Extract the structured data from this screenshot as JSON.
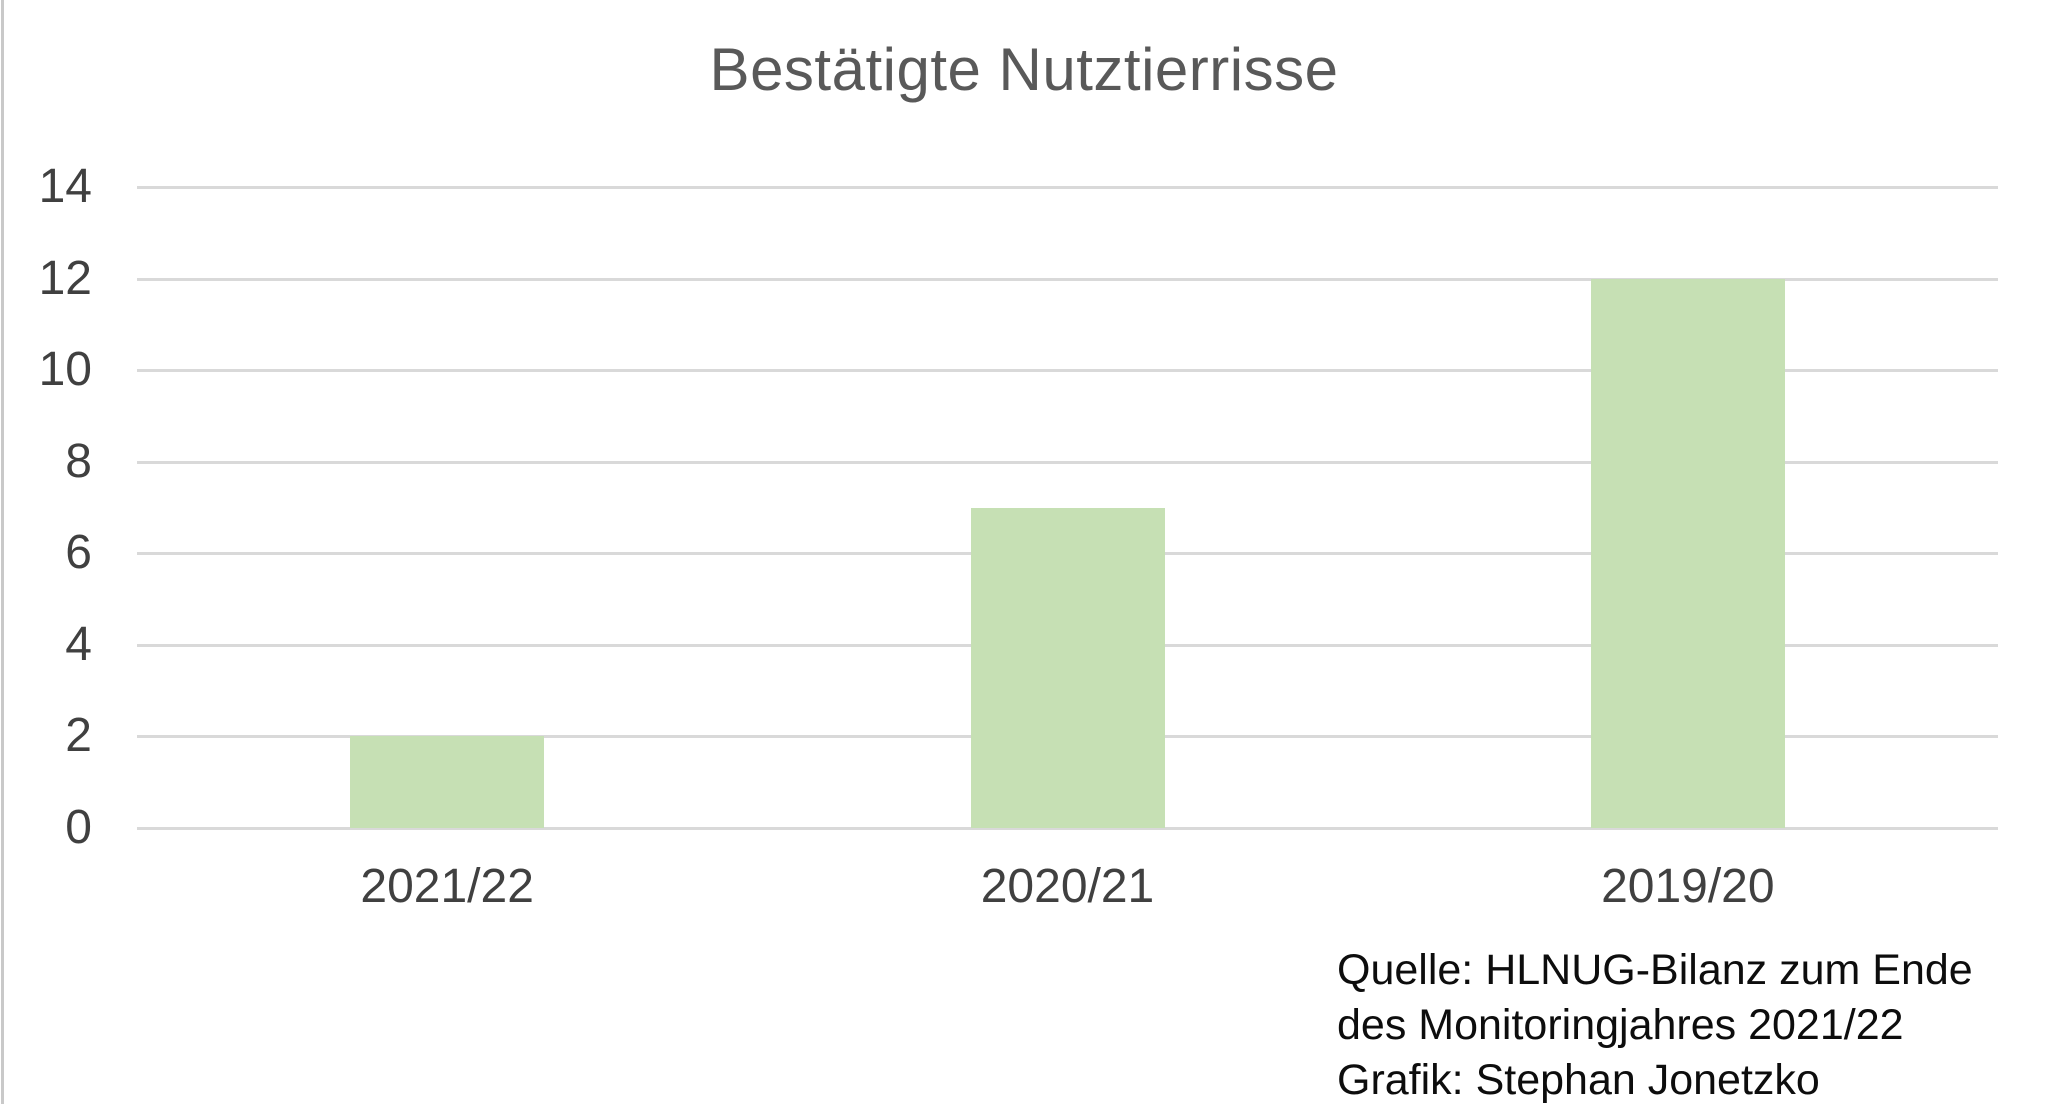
{
  "chart_data": {
    "type": "bar",
    "title": "Bestätigte Nutztierrisse",
    "categories": [
      "2021/22",
      "2020/21",
      "2019/20"
    ],
    "values": [
      2,
      7,
      12
    ],
    "xlabel": "",
    "ylabel": "",
    "ylim": [
      0,
      14
    ],
    "yticks": [
      0,
      2,
      4,
      6,
      8,
      10,
      12,
      14
    ],
    "grid": true,
    "legend": false,
    "bar_color": "#c6e0b4",
    "gridline_color": "#d9d9d9",
    "title_color": "#595959",
    "axis_label_color": "#404040"
  },
  "source": {
    "lines": [
      "Quelle: HLNUG-Bilanz zum Ende",
      "des Monitoringjahres 2021/22",
      "Grafik: Stephan Jonetzko"
    ],
    "color": "#0d0d0d"
  }
}
